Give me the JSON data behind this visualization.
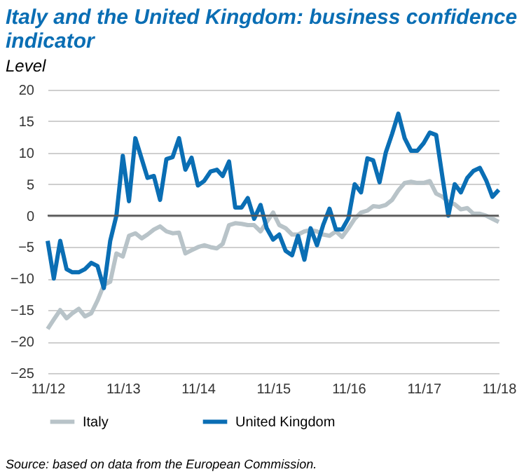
{
  "chart_data": {
    "type": "line",
    "title": "Italy and the United Kingdom: business confidence indicator",
    "subtitle": "Level",
    "x": [
      "2012-11",
      "2012-12",
      "2013-01",
      "2013-02",
      "2013-03",
      "2013-04",
      "2013-05",
      "2013-06",
      "2013-07",
      "2013-08",
      "2013-09",
      "2013-10",
      "2013-11",
      "2013-12",
      "2014-01",
      "2014-02",
      "2014-03",
      "2014-04",
      "2014-05",
      "2014-06",
      "2014-07",
      "2014-08",
      "2014-09",
      "2014-10",
      "2014-11",
      "2014-12",
      "2015-01",
      "2015-02",
      "2015-03",
      "2015-04",
      "2015-05",
      "2015-06",
      "2015-07",
      "2015-08",
      "2015-09",
      "2015-10",
      "2015-11",
      "2015-12",
      "2016-01",
      "2016-02",
      "2016-03",
      "2016-04",
      "2016-05",
      "2016-06",
      "2016-07",
      "2016-08",
      "2016-09",
      "2016-10",
      "2016-11",
      "2016-12",
      "2017-01",
      "2017-02",
      "2017-03",
      "2017-04",
      "2017-05",
      "2017-06",
      "2017-07",
      "2017-08",
      "2017-09",
      "2017-10",
      "2017-11",
      "2017-12",
      "2018-01",
      "2018-02",
      "2018-03",
      "2018-04",
      "2018-05",
      "2018-06",
      "2018-07",
      "2018-08",
      "2018-09",
      "2018-10",
      "2018-11"
    ],
    "series": [
      {
        "name": "Italy",
        "color": "#b8c3c8",
        "values": [
          -18,
          -16.5,
          -15,
          -16.3,
          -15.5,
          -14.8,
          -16,
          -15.5,
          -13.5,
          -11,
          -10.5,
          -6,
          -6.5,
          -3.2,
          -2.8,
          -3.6,
          -3,
          -2.2,
          -1.7,
          -2.5,
          -2.8,
          -2.7,
          -6,
          -5.5,
          -5,
          -4.7,
          -5,
          -5.2,
          -4.5,
          -1.5,
          -1.2,
          -1.3,
          -1.5,
          -1.5,
          -2.5,
          -1,
          0.5,
          -1.5,
          -2,
          -3,
          -3,
          -2.5,
          -2.3,
          -2.5,
          -3,
          -3.2,
          -2.5,
          -3.4,
          -2,
          -0.5,
          0.5,
          0.8,
          1.5,
          1.4,
          1.7,
          2.5,
          4,
          5.2,
          5.4,
          5.2,
          5.2,
          5.5,
          3.5,
          3,
          2.2,
          1.8,
          1,
          1.2,
          0.3,
          0.3,
          0,
          -0.5,
          -1
        ]
      },
      {
        "name": "United Kingdom",
        "color": "#0a6eb4",
        "values": [
          -4,
          -10,
          -4,
          -8.5,
          -9,
          -9,
          -8.5,
          -7.5,
          -8,
          -11.5,
          -4,
          0,
          9.5,
          2.3,
          12.3,
          9,
          6,
          6.3,
          2.5,
          9,
          9.3,
          12.3,
          7.3,
          9.2,
          4.8,
          5.5,
          7,
          7.3,
          6.3,
          8.6,
          1.3,
          1.3,
          2.8,
          -0.5,
          1.7,
          -2,
          -3.8,
          -3,
          -5.6,
          -6.3,
          -3.2,
          -7,
          -2,
          -4.7,
          -1.5,
          1.1,
          -2.2,
          -2.2,
          -0.4,
          5,
          3.7,
          9.1,
          8.8,
          5.3,
          10,
          13,
          16.2,
          12.3,
          10.3,
          10.3,
          11.5,
          13.2,
          12.8,
          6,
          0,
          5,
          3.7,
          6,
          7.1,
          7.6,
          5.6,
          3,
          4.1
        ]
      }
    ],
    "xlim": [
      "2012-11",
      "2018-11"
    ],
    "xticks": [
      {
        "value": "2012-11",
        "label": "11/12"
      },
      {
        "value": "2013-11",
        "label": "11/13"
      },
      {
        "value": "2014-11",
        "label": "11/14"
      },
      {
        "value": "2015-11",
        "label": "11/15"
      },
      {
        "value": "2016-11",
        "label": "11/16"
      },
      {
        "value": "2017-11",
        "label": "11/17"
      },
      {
        "value": "2018-11",
        "label": "11/18"
      }
    ],
    "ylim": [
      -25,
      20
    ],
    "yticks": [
      -25,
      -20,
      -15,
      -10,
      -5,
      0,
      5,
      10,
      15,
      20
    ],
    "grid": "y",
    "legend": "bottom",
    "ref_lines": [
      {
        "axis": "y",
        "value": 0,
        "color": "#555555"
      }
    ],
    "annotations": [
      "Source: based on data from the European Commission."
    ]
  }
}
